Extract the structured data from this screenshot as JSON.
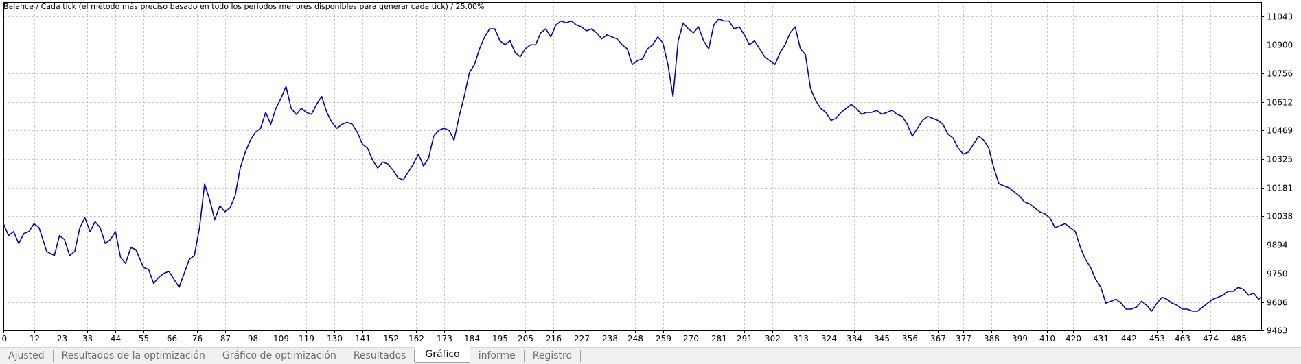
{
  "chart_data": {
    "type": "line",
    "title": "Balance / Cada tick (el método más preciso basado en todo los períodos menores disponibles para generar cada tick)  / 25.00%",
    "xlabel": "",
    "ylabel": "",
    "x_ticks": [
      "0",
      "12",
      "23",
      "33",
      "44",
      "55",
      "66",
      "76",
      "87",
      "98",
      "109",
      "119",
      "130",
      "141",
      "152",
      "162",
      "173",
      "184",
      "195",
      "205",
      "216",
      "227",
      "238",
      "248",
      "259",
      "270",
      "281",
      "291",
      "302",
      "313",
      "324",
      "334",
      "345",
      "356",
      "367",
      "377",
      "388",
      "399",
      "410",
      "420",
      "431",
      "442",
      "453",
      "463",
      "474",
      "485"
    ],
    "y_ticks": [
      "11043",
      "10900",
      "10756",
      "10612",
      "10469",
      "10325",
      "10181",
      "10038",
      "9894",
      "9750",
      "9606",
      "9463"
    ],
    "xlim": [
      0,
      494
    ],
    "ylim": [
      9463,
      11115
    ],
    "grid": true,
    "series_color": "#0000b4",
    "series": [
      {
        "values": [
          [
            0,
            10000
          ],
          [
            2,
            9940
          ],
          [
            4,
            9960
          ],
          [
            6,
            9900
          ],
          [
            8,
            9950
          ],
          [
            10,
            9960
          ],
          [
            12,
            10000
          ],
          [
            14,
            9980
          ],
          [
            17,
            9860
          ],
          [
            20,
            9840
          ],
          [
            22,
            9940
          ],
          [
            24,
            9920
          ],
          [
            26,
            9840
          ],
          [
            28,
            9860
          ],
          [
            30,
            9980
          ],
          [
            32,
            10030
          ],
          [
            34,
            9960
          ],
          [
            36,
            10010
          ],
          [
            38,
            9980
          ],
          [
            40,
            9900
          ],
          [
            42,
            9920
          ],
          [
            44,
            9960
          ],
          [
            46,
            9830
          ],
          [
            48,
            9800
          ],
          [
            50,
            9880
          ],
          [
            52,
            9870
          ],
          [
            55,
            9780
          ],
          [
            57,
            9770
          ],
          [
            59,
            9700
          ],
          [
            61,
            9730
          ],
          [
            63,
            9750
          ],
          [
            65,
            9760
          ],
          [
            67,
            9720
          ],
          [
            69,
            9680
          ],
          [
            71,
            9750
          ],
          [
            73,
            9820
          ],
          [
            75,
            9840
          ],
          [
            77,
            9980
          ],
          [
            79,
            10200
          ],
          [
            81,
            10120
          ],
          [
            83,
            10020
          ],
          [
            85,
            10090
          ],
          [
            87,
            10060
          ],
          [
            89,
            10080
          ],
          [
            91,
            10140
          ],
          [
            93,
            10280
          ],
          [
            95,
            10360
          ],
          [
            97,
            10420
          ],
          [
            99,
            10460
          ],
          [
            101,
            10480
          ],
          [
            103,
            10560
          ],
          [
            105,
            10500
          ],
          [
            107,
            10580
          ],
          [
            109,
            10630
          ],
          [
            111,
            10690
          ],
          [
            113,
            10580
          ],
          [
            115,
            10550
          ],
          [
            117,
            10580
          ],
          [
            119,
            10560
          ],
          [
            121,
            10550
          ],
          [
            123,
            10600
          ],
          [
            125,
            10640
          ],
          [
            127,
            10560
          ],
          [
            129,
            10510
          ],
          [
            131,
            10480
          ],
          [
            133,
            10500
          ],
          [
            135,
            10510
          ],
          [
            137,
            10500
          ],
          [
            139,
            10460
          ],
          [
            141,
            10400
          ],
          [
            143,
            10380
          ],
          [
            145,
            10320
          ],
          [
            147,
            10280
          ],
          [
            149,
            10310
          ],
          [
            151,
            10300
          ],
          [
            153,
            10270
          ],
          [
            155,
            10230
          ],
          [
            157,
            10220
          ],
          [
            159,
            10260
          ],
          [
            161,
            10300
          ],
          [
            163,
            10350
          ],
          [
            165,
            10290
          ],
          [
            167,
            10330
          ],
          [
            169,
            10440
          ],
          [
            171,
            10470
          ],
          [
            173,
            10480
          ],
          [
            175,
            10470
          ],
          [
            177,
            10420
          ],
          [
            179,
            10540
          ],
          [
            181,
            10640
          ],
          [
            183,
            10760
          ],
          [
            185,
            10800
          ],
          [
            187,
            10880
          ],
          [
            189,
            10940
          ],
          [
            191,
            10980
          ],
          [
            193,
            10980
          ],
          [
            195,
            10920
          ],
          [
            197,
            10900
          ],
          [
            199,
            10920
          ],
          [
            201,
            10860
          ],
          [
            203,
            10840
          ],
          [
            205,
            10880
          ],
          [
            207,
            10900
          ],
          [
            209,
            10900
          ],
          [
            211,
            10960
          ],
          [
            213,
            10980
          ],
          [
            215,
            10940
          ],
          [
            217,
            11000
          ],
          [
            219,
            11020
          ],
          [
            221,
            11010
          ],
          [
            223,
            11020
          ],
          [
            225,
            11000
          ],
          [
            227,
            10990
          ],
          [
            229,
            10970
          ],
          [
            231,
            10980
          ],
          [
            233,
            10960
          ],
          [
            235,
            10930
          ],
          [
            237,
            10950
          ],
          [
            239,
            10940
          ],
          [
            241,
            10930
          ],
          [
            243,
            10900
          ],
          [
            245,
            10880
          ],
          [
            247,
            10800
          ],
          [
            249,
            10820
          ],
          [
            251,
            10830
          ],
          [
            253,
            10880
          ],
          [
            255,
            10900
          ],
          [
            257,
            10940
          ],
          [
            259,
            10910
          ],
          [
            261,
            10800
          ],
          [
            263,
            10640
          ],
          [
            265,
            10920
          ],
          [
            267,
            11010
          ],
          [
            269,
            10980
          ],
          [
            271,
            10960
          ],
          [
            273,
            10990
          ],
          [
            275,
            10920
          ],
          [
            277,
            10880
          ],
          [
            279,
            11000
          ],
          [
            281,
            11030
          ],
          [
            283,
            11020
          ],
          [
            285,
            11020
          ],
          [
            287,
            10980
          ],
          [
            289,
            10990
          ],
          [
            291,
            10950
          ],
          [
            293,
            10900
          ],
          [
            295,
            10920
          ],
          [
            297,
            10880
          ],
          [
            299,
            10840
          ],
          [
            301,
            10820
          ],
          [
            303,
            10800
          ],
          [
            305,
            10860
          ],
          [
            307,
            10900
          ],
          [
            309,
            10960
          ],
          [
            311,
            10990
          ],
          [
            313,
            10880
          ],
          [
            315,
            10850
          ],
          [
            317,
            10680
          ],
          [
            319,
            10620
          ],
          [
            321,
            10580
          ],
          [
            323,
            10560
          ],
          [
            325,
            10520
          ],
          [
            327,
            10530
          ],
          [
            329,
            10560
          ],
          [
            331,
            10580
          ],
          [
            333,
            10600
          ],
          [
            335,
            10580
          ],
          [
            337,
            10550
          ],
          [
            339,
            10560
          ],
          [
            341,
            10560
          ],
          [
            343,
            10570
          ],
          [
            345,
            10550
          ],
          [
            347,
            10560
          ],
          [
            349,
            10570
          ],
          [
            351,
            10550
          ],
          [
            353,
            10540
          ],
          [
            355,
            10500
          ],
          [
            357,
            10440
          ],
          [
            359,
            10480
          ],
          [
            361,
            10520
          ],
          [
            363,
            10540
          ],
          [
            365,
            10530
          ],
          [
            367,
            10520
          ],
          [
            369,
            10500
          ],
          [
            371,
            10450
          ],
          [
            373,
            10430
          ],
          [
            375,
            10380
          ],
          [
            377,
            10350
          ],
          [
            379,
            10360
          ],
          [
            381,
            10400
          ],
          [
            383,
            10440
          ],
          [
            385,
            10420
          ],
          [
            387,
            10380
          ],
          [
            389,
            10280
          ],
          [
            391,
            10200
          ],
          [
            393,
            10190
          ],
          [
            395,
            10180
          ],
          [
            397,
            10160
          ],
          [
            399,
            10140
          ],
          [
            401,
            10110
          ],
          [
            403,
            10100
          ],
          [
            405,
            10080
          ],
          [
            407,
            10060
          ],
          [
            409,
            10050
          ],
          [
            411,
            10030
          ],
          [
            413,
            9980
          ],
          [
            415,
            9990
          ],
          [
            417,
            10000
          ],
          [
            419,
            9980
          ],
          [
            421,
            9960
          ],
          [
            423,
            9880
          ],
          [
            425,
            9820
          ],
          [
            427,
            9780
          ],
          [
            429,
            9720
          ],
          [
            431,
            9680
          ],
          [
            433,
            9600
          ],
          [
            435,
            9610
          ],
          [
            437,
            9620
          ],
          [
            439,
            9600
          ],
          [
            441,
            9570
          ],
          [
            443,
            9570
          ],
          [
            445,
            9580
          ],
          [
            447,
            9610
          ],
          [
            449,
            9590
          ],
          [
            451,
            9560
          ],
          [
            453,
            9600
          ],
          [
            455,
            9630
          ],
          [
            457,
            9620
          ],
          [
            459,
            9600
          ],
          [
            461,
            9590
          ],
          [
            463,
            9570
          ],
          [
            465,
            9570
          ],
          [
            467,
            9560
          ],
          [
            469,
            9560
          ],
          [
            471,
            9580
          ],
          [
            473,
            9600
          ],
          [
            475,
            9620
          ],
          [
            477,
            9630
          ],
          [
            479,
            9640
          ],
          [
            481,
            9660
          ],
          [
            483,
            9660
          ],
          [
            485,
            9680
          ],
          [
            487,
            9670
          ],
          [
            489,
            9640
          ],
          [
            491,
            9650
          ],
          [
            493,
            9620
          ],
          [
            494,
            9630
          ]
        ]
      }
    ]
  },
  "tabs": [
    {
      "label": "Ajusted"
    },
    {
      "label": "Resultados de la optimización"
    },
    {
      "label": "Gráfico de optimización"
    },
    {
      "label": "Resultados"
    },
    {
      "label": "Gráfico"
    },
    {
      "label": "informe"
    },
    {
      "label": "Registro"
    }
  ]
}
